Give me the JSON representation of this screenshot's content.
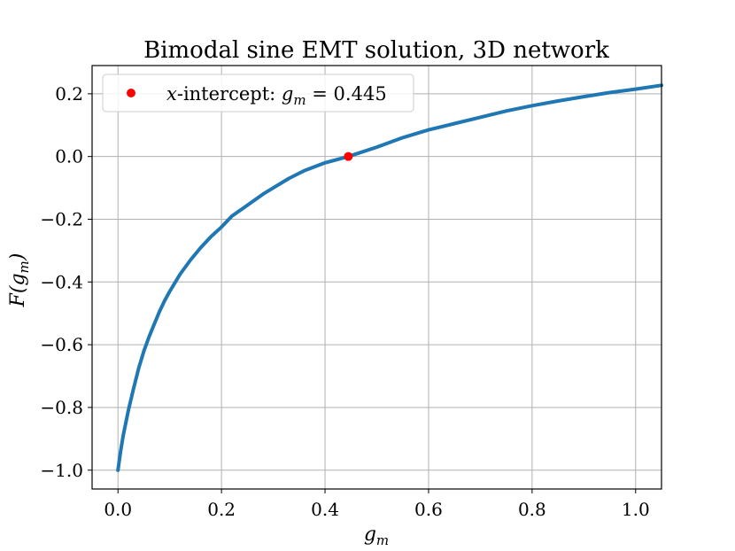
{
  "chart_data": {
    "type": "line",
    "title": "Bimodal sine EMT solution, 3D network",
    "xlabel": "g_m",
    "ylabel": "F(g_m)",
    "xlim": [
      -0.05,
      1.05
    ],
    "ylim": [
      -1.06,
      0.29
    ],
    "xticks": [
      0.0,
      0.2,
      0.4,
      0.6,
      0.8,
      1.0
    ],
    "xtick_labels": [
      "0.0",
      "0.2",
      "0.4",
      "0.6",
      "0.8",
      "1.0"
    ],
    "yticks": [
      -1.0,
      -0.8,
      -0.6,
      -0.4,
      -0.2,
      0.0,
      0.2
    ],
    "ytick_labels": [
      "−1.0",
      "−0.8",
      "−0.6",
      "−0.4",
      "−0.2",
      "0.0",
      "0.2"
    ],
    "grid": true,
    "legend_placement": "top-left",
    "series": [
      {
        "color": "#1f77b4",
        "x": [
          0.0,
          0.005,
          0.01,
          0.02,
          0.03,
          0.04,
          0.05,
          0.06,
          0.07,
          0.08,
          0.09,
          0.1,
          0.12,
          0.14,
          0.16,
          0.18,
          0.2,
          0.22,
          0.25,
          0.28,
          0.3,
          0.33,
          0.36,
          0.4,
          0.445,
          0.5,
          0.55,
          0.6,
          0.65,
          0.7,
          0.75,
          0.8,
          0.85,
          0.9,
          0.95,
          1.0,
          1.05
        ],
        "y": [
          -1.0,
          -0.94,
          -0.89,
          -0.81,
          -0.74,
          -0.675,
          -0.62,
          -0.575,
          -0.535,
          -0.495,
          -0.46,
          -0.43,
          -0.375,
          -0.33,
          -0.29,
          -0.255,
          -0.225,
          -0.19,
          -0.155,
          -0.12,
          -0.1,
          -0.07,
          -0.045,
          -0.02,
          0.0,
          0.03,
          0.06,
          0.085,
          0.105,
          0.125,
          0.145,
          0.162,
          0.177,
          0.191,
          0.204,
          0.215,
          0.227
        ]
      }
    ],
    "marker": {
      "color": "#ff0000",
      "x": 0.445,
      "y": 0.0,
      "label_prefix": "x-intercept: ",
      "label_var": "g",
      "label_sub": "m",
      "label_value": " = 0.445"
    }
  }
}
